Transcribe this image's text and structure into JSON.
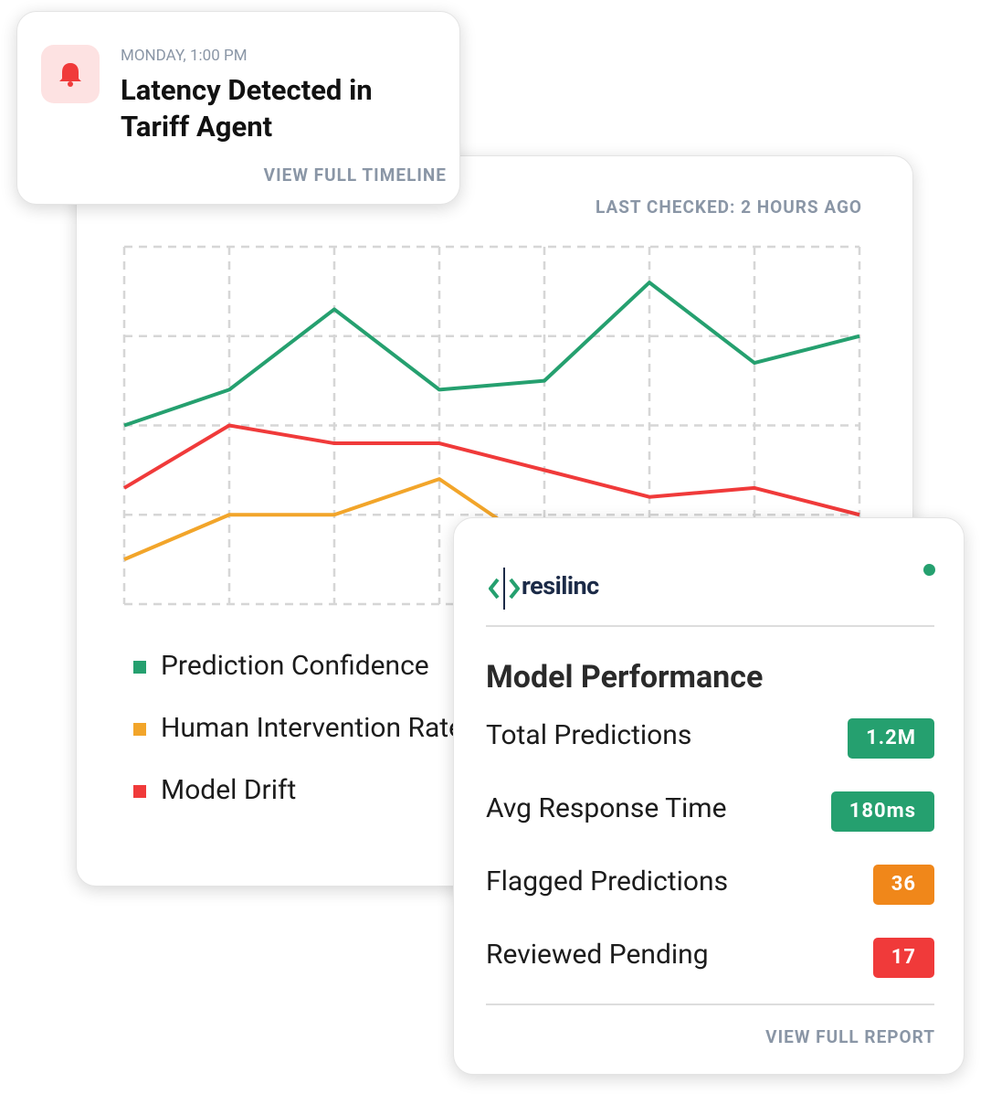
{
  "notification": {
    "time": "MONDAY, 1:00 PM",
    "title": "Latency Detected in Tariff Agent",
    "link": "VIEW FULL TIMELINE"
  },
  "status": "LAST CHECKED: 2 HOURS AGO",
  "chart_data": {
    "type": "line",
    "categories": [
      null,
      null,
      null,
      null,
      null,
      null,
      null,
      null
    ],
    "series": [
      {
        "name": "Prediction Confidence",
        "color": "#25a06f",
        "values": [
          2.0,
          2.4,
          3.3,
          2.4,
          2.5,
          3.6,
          2.7,
          3.0
        ]
      },
      {
        "name": "Human Intervention Rate",
        "color": "#f2a52a",
        "values": [
          0.5,
          1.0,
          1.0,
          1.4,
          0.6,
          null,
          null,
          null
        ]
      },
      {
        "name": "Model Drift",
        "color": "#f03a3a",
        "values": [
          1.3,
          2.0,
          1.8,
          1.8,
          1.5,
          1.2,
          1.3,
          1.0
        ]
      }
    ],
    "ylim": [
      0,
      4
    ],
    "yticks": [
      0,
      1,
      2,
      3,
      4
    ],
    "grid": true
  },
  "panel": {
    "logo": "resilinc",
    "title": "Model Performance",
    "rows": [
      {
        "label": "Total Predictions",
        "value": "1.2M",
        "color": "#25a06f"
      },
      {
        "label": "Avg Response Time",
        "value": "180ms",
        "color": "#25a06f"
      },
      {
        "label": "Flagged Predictions",
        "value": 36,
        "color": "#f0871a"
      },
      {
        "label": "Reviewed Pending",
        "value": 17,
        "color": "#f03a3a"
      }
    ],
    "link": "VIEW FULL REPORT"
  }
}
